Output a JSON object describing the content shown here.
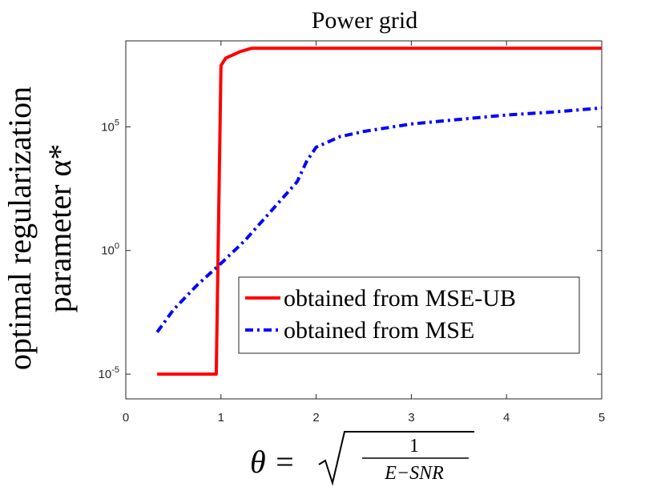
{
  "chart_data": {
    "type": "line",
    "title": "Power grid",
    "ylabel_line1": "optimal regularization",
    "ylabel_line2": "parameter α*",
    "xlabel": {
      "lhs": "θ =",
      "numerator": "1",
      "denominator": "E−SNR"
    },
    "y_scale": "log",
    "xlim": [
      0,
      5
    ],
    "ylim": [
      1e-06,
      300000000.0
    ],
    "x_ticks": [
      0,
      1,
      2,
      3,
      4,
      5
    ],
    "x_tick_labels": [
      "0",
      "1",
      "2",
      "3",
      "4",
      "5"
    ],
    "y_ticks": [
      1e-05,
      1,
      100000.0
    ],
    "y_tick_labels": [
      {
        "base": "10",
        "exp": "-5"
      },
      {
        "base": "10",
        "exp": "0"
      },
      {
        "base": "10",
        "exp": "5"
      }
    ],
    "grid": false,
    "legend_position": "bottom-right",
    "series": [
      {
        "name": "obtained from MSE-UB",
        "color": "#ff0000",
        "style": "solid",
        "x": [
          0.33,
          0.5,
          0.7,
          0.9,
          0.95,
          1.0,
          1.05,
          1.2,
          1.32,
          1.5,
          2,
          3,
          4,
          5
        ],
        "y": [
          1e-05,
          1e-05,
          1e-05,
          1e-05,
          1e-05,
          30000000.0,
          60000000.0,
          110000000.0,
          150000000.0,
          150000000.0,
          150000000.0,
          150000000.0,
          150000000.0,
          150000000.0
        ]
      },
      {
        "name": "obtained from MSE",
        "color": "#0000ff",
        "style": "dashdot",
        "x": [
          0.33,
          0.5,
          0.75,
          1.0,
          1.25,
          1.5,
          1.8,
          1.9,
          2.0,
          2.25,
          2.5,
          3.0,
          3.5,
          4.0,
          4.5,
          5.0
        ],
        "y": [
          0.0005,
          0.004,
          0.04,
          0.3,
          2.5,
          30,
          600,
          4000,
          15000,
          40000,
          65000,
          130000,
          200000,
          300000,
          400000,
          580000
        ]
      }
    ]
  }
}
